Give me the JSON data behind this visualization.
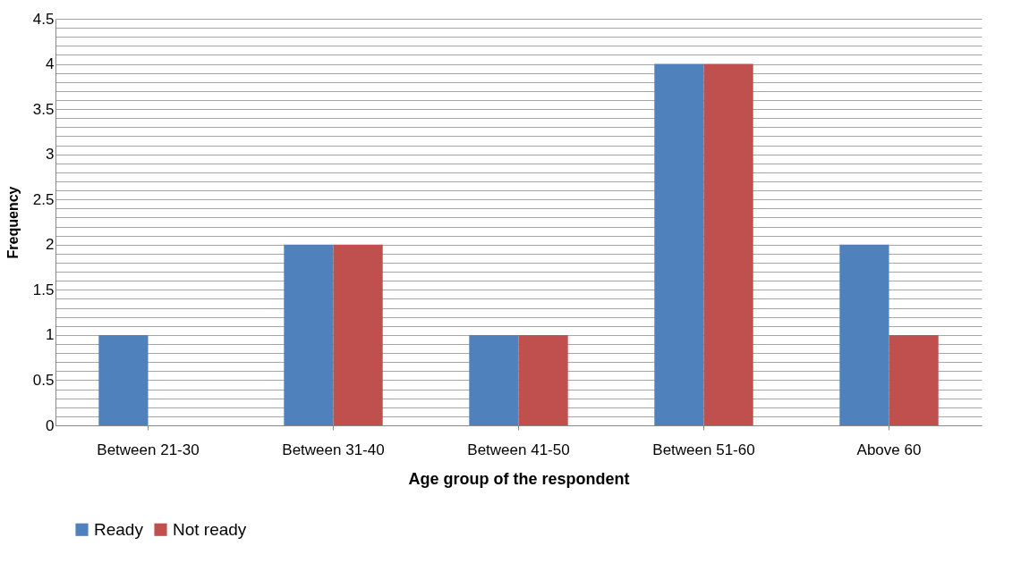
{
  "chart_data": {
    "type": "bar",
    "xlabel": "Age group of the respondent",
    "ylabel": "Frequency",
    "categories": [
      "Between 21-30",
      "Between 31-40",
      "Between 41-50",
      "Between 51-60",
      "Above 60"
    ],
    "series": [
      {
        "name": "Ready",
        "color": "#4f81bd",
        "values": [
          1,
          2,
          1,
          4,
          2
        ]
      },
      {
        "name": "Not ready",
        "color": "#c0504d",
        "values": [
          0,
          2,
          1,
          4,
          1
        ]
      }
    ],
    "ylim": [
      0,
      4.5
    ],
    "yticks": [
      0,
      {
        "value": 0.1,
        "label": null
      },
      {
        "value": 0.2,
        "label": null
      },
      {
        "value": 0.3,
        "label": null
      },
      {
        "value": 0.4,
        "label": null
      },
      0.5,
      {
        "value": 0.6,
        "label": null
      },
      {
        "value": 0.7,
        "label": null
      },
      {
        "value": 0.8,
        "label": null
      },
      {
        "value": 0.9,
        "label": null
      },
      1,
      {
        "value": 1.1,
        "label": null
      },
      {
        "value": 1.2,
        "label": null
      },
      {
        "value": 1.3,
        "label": null
      },
      {
        "value": 1.4,
        "label": null
      },
      1.5,
      {
        "value": 1.6,
        "label": null
      },
      {
        "value": 1.7,
        "label": null
      },
      {
        "value": 1.8,
        "label": null
      },
      {
        "value": 1.9,
        "label": null
      },
      2,
      {
        "value": 2.1,
        "label": null
      },
      {
        "value": 2.2,
        "label": null
      },
      {
        "value": 2.3,
        "label": null
      },
      {
        "value": 2.4,
        "label": null
      },
      2.5,
      {
        "value": 2.6,
        "label": null
      },
      {
        "value": 2.7,
        "label": null
      },
      {
        "value": 2.8,
        "label": null
      },
      {
        "value": 2.9,
        "label": null
      },
      3,
      {
        "value": 3.1,
        "label": null
      },
      {
        "value": 3.2,
        "label": null
      },
      {
        "value": 3.3,
        "label": null
      },
      {
        "value": 3.4,
        "label": null
      },
      3.5,
      {
        "value": 3.6,
        "label": null
      },
      {
        "value": 3.7,
        "label": null
      },
      {
        "value": 3.8,
        "label": null
      },
      {
        "value": 3.9,
        "label": null
      },
      4,
      {
        "value": 4.1,
        "label": null
      },
      {
        "value": 4.2,
        "label": null
      },
      {
        "value": 4.3,
        "label": null
      },
      {
        "value": 4.4,
        "label": null
      },
      4.5
    ],
    "grid": "y",
    "legend": "bottom"
  }
}
